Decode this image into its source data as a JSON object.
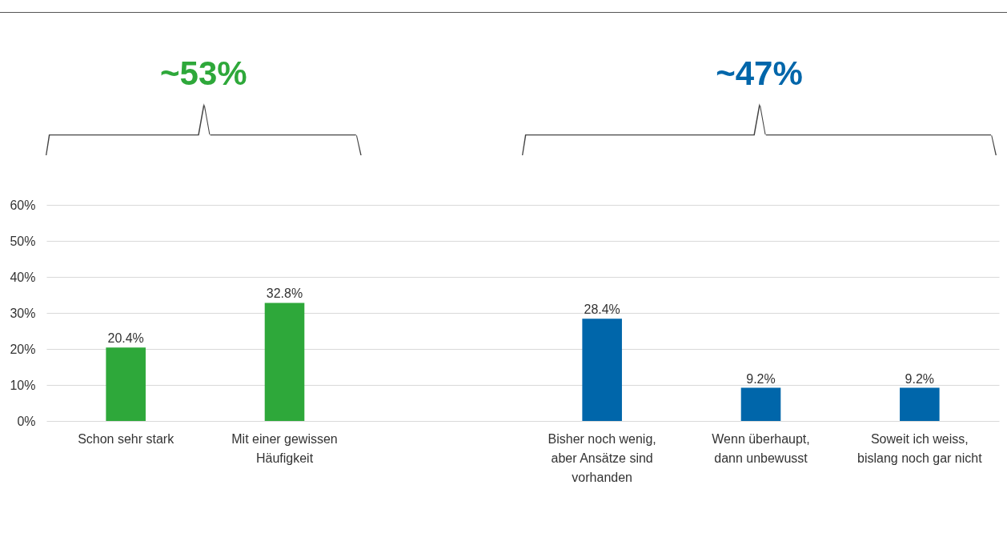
{
  "chart_data": {
    "type": "bar",
    "categories": [
      "Schon sehr stark",
      "Mit einer gewissen Häufigkeit",
      null,
      "Bisher noch wenig, aber Ansätze sind vorhanden",
      "Wenn überhaupt, dann unbewusst",
      "Soweit ich weiss, bislang noch gar nicht"
    ],
    "values": [
      20.4,
      32.8,
      null,
      28.4,
      9.2,
      9.2
    ],
    "value_labels": [
      "20.4%",
      "32.8%",
      null,
      "28.4%",
      "9.2%",
      "9.2%"
    ],
    "colors": [
      "#2ea83a",
      "#2ea83a",
      null,
      "#0066aa",
      "#0066aa",
      "#0066aa"
    ],
    "ylim": [
      0,
      60
    ],
    "yticks": [
      {
        "value": 0,
        "label": "0%"
      },
      {
        "value": 10,
        "label": "10%"
      },
      {
        "value": 20,
        "label": "20%"
      },
      {
        "value": 30,
        "label": "30%"
      },
      {
        "value": 40,
        "label": "40%"
      },
      {
        "value": 50,
        "label": "50%"
      },
      {
        "value": 60,
        "label": "60%"
      }
    ],
    "grid": "y",
    "annotations": [
      "~53%",
      "~47%"
    ]
  }
}
